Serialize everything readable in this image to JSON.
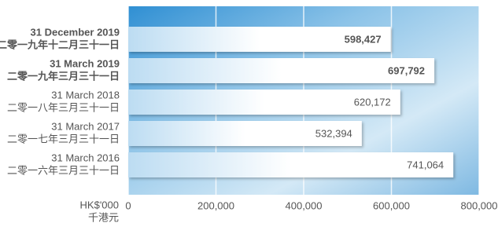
{
  "chart_data": {
    "type": "bar",
    "orientation": "horizontal",
    "categories": [
      "31 December 2019",
      "31 March 2019",
      "31 March 2018",
      "31 March 2017",
      "31 March 2016"
    ],
    "category_sublabels": [
      "二零一九年十二月三十一日",
      "二零一九年三月三十一日",
      "二零一八年三月三十一日",
      "二零一七年三月三十一日",
      "二零一六年三月三十一日"
    ],
    "values": [
      598427,
      697792,
      620172,
      532394,
      741064
    ],
    "value_labels": [
      "598,427",
      "697,792",
      "620,172",
      "532,394",
      "741,064"
    ],
    "emphasized": [
      true,
      true,
      false,
      false,
      false
    ],
    "emphasis_color": "#1b6ec2",
    "color": "#ffffff",
    "xlim": [
      0,
      800000
    ],
    "xticks": [
      0,
      {
        "value": 200000,
        "label": "200,000"
      },
      {
        "value": 400000,
        "label": "400,000"
      },
      {
        "value": 600000,
        "label": "600,000"
      },
      {
        "value": 800000,
        "label": "800,000"
      }
    ],
    "grid": true,
    "x_axis_label": "HK$'000",
    "x_axis_sublabel": "千港元"
  }
}
